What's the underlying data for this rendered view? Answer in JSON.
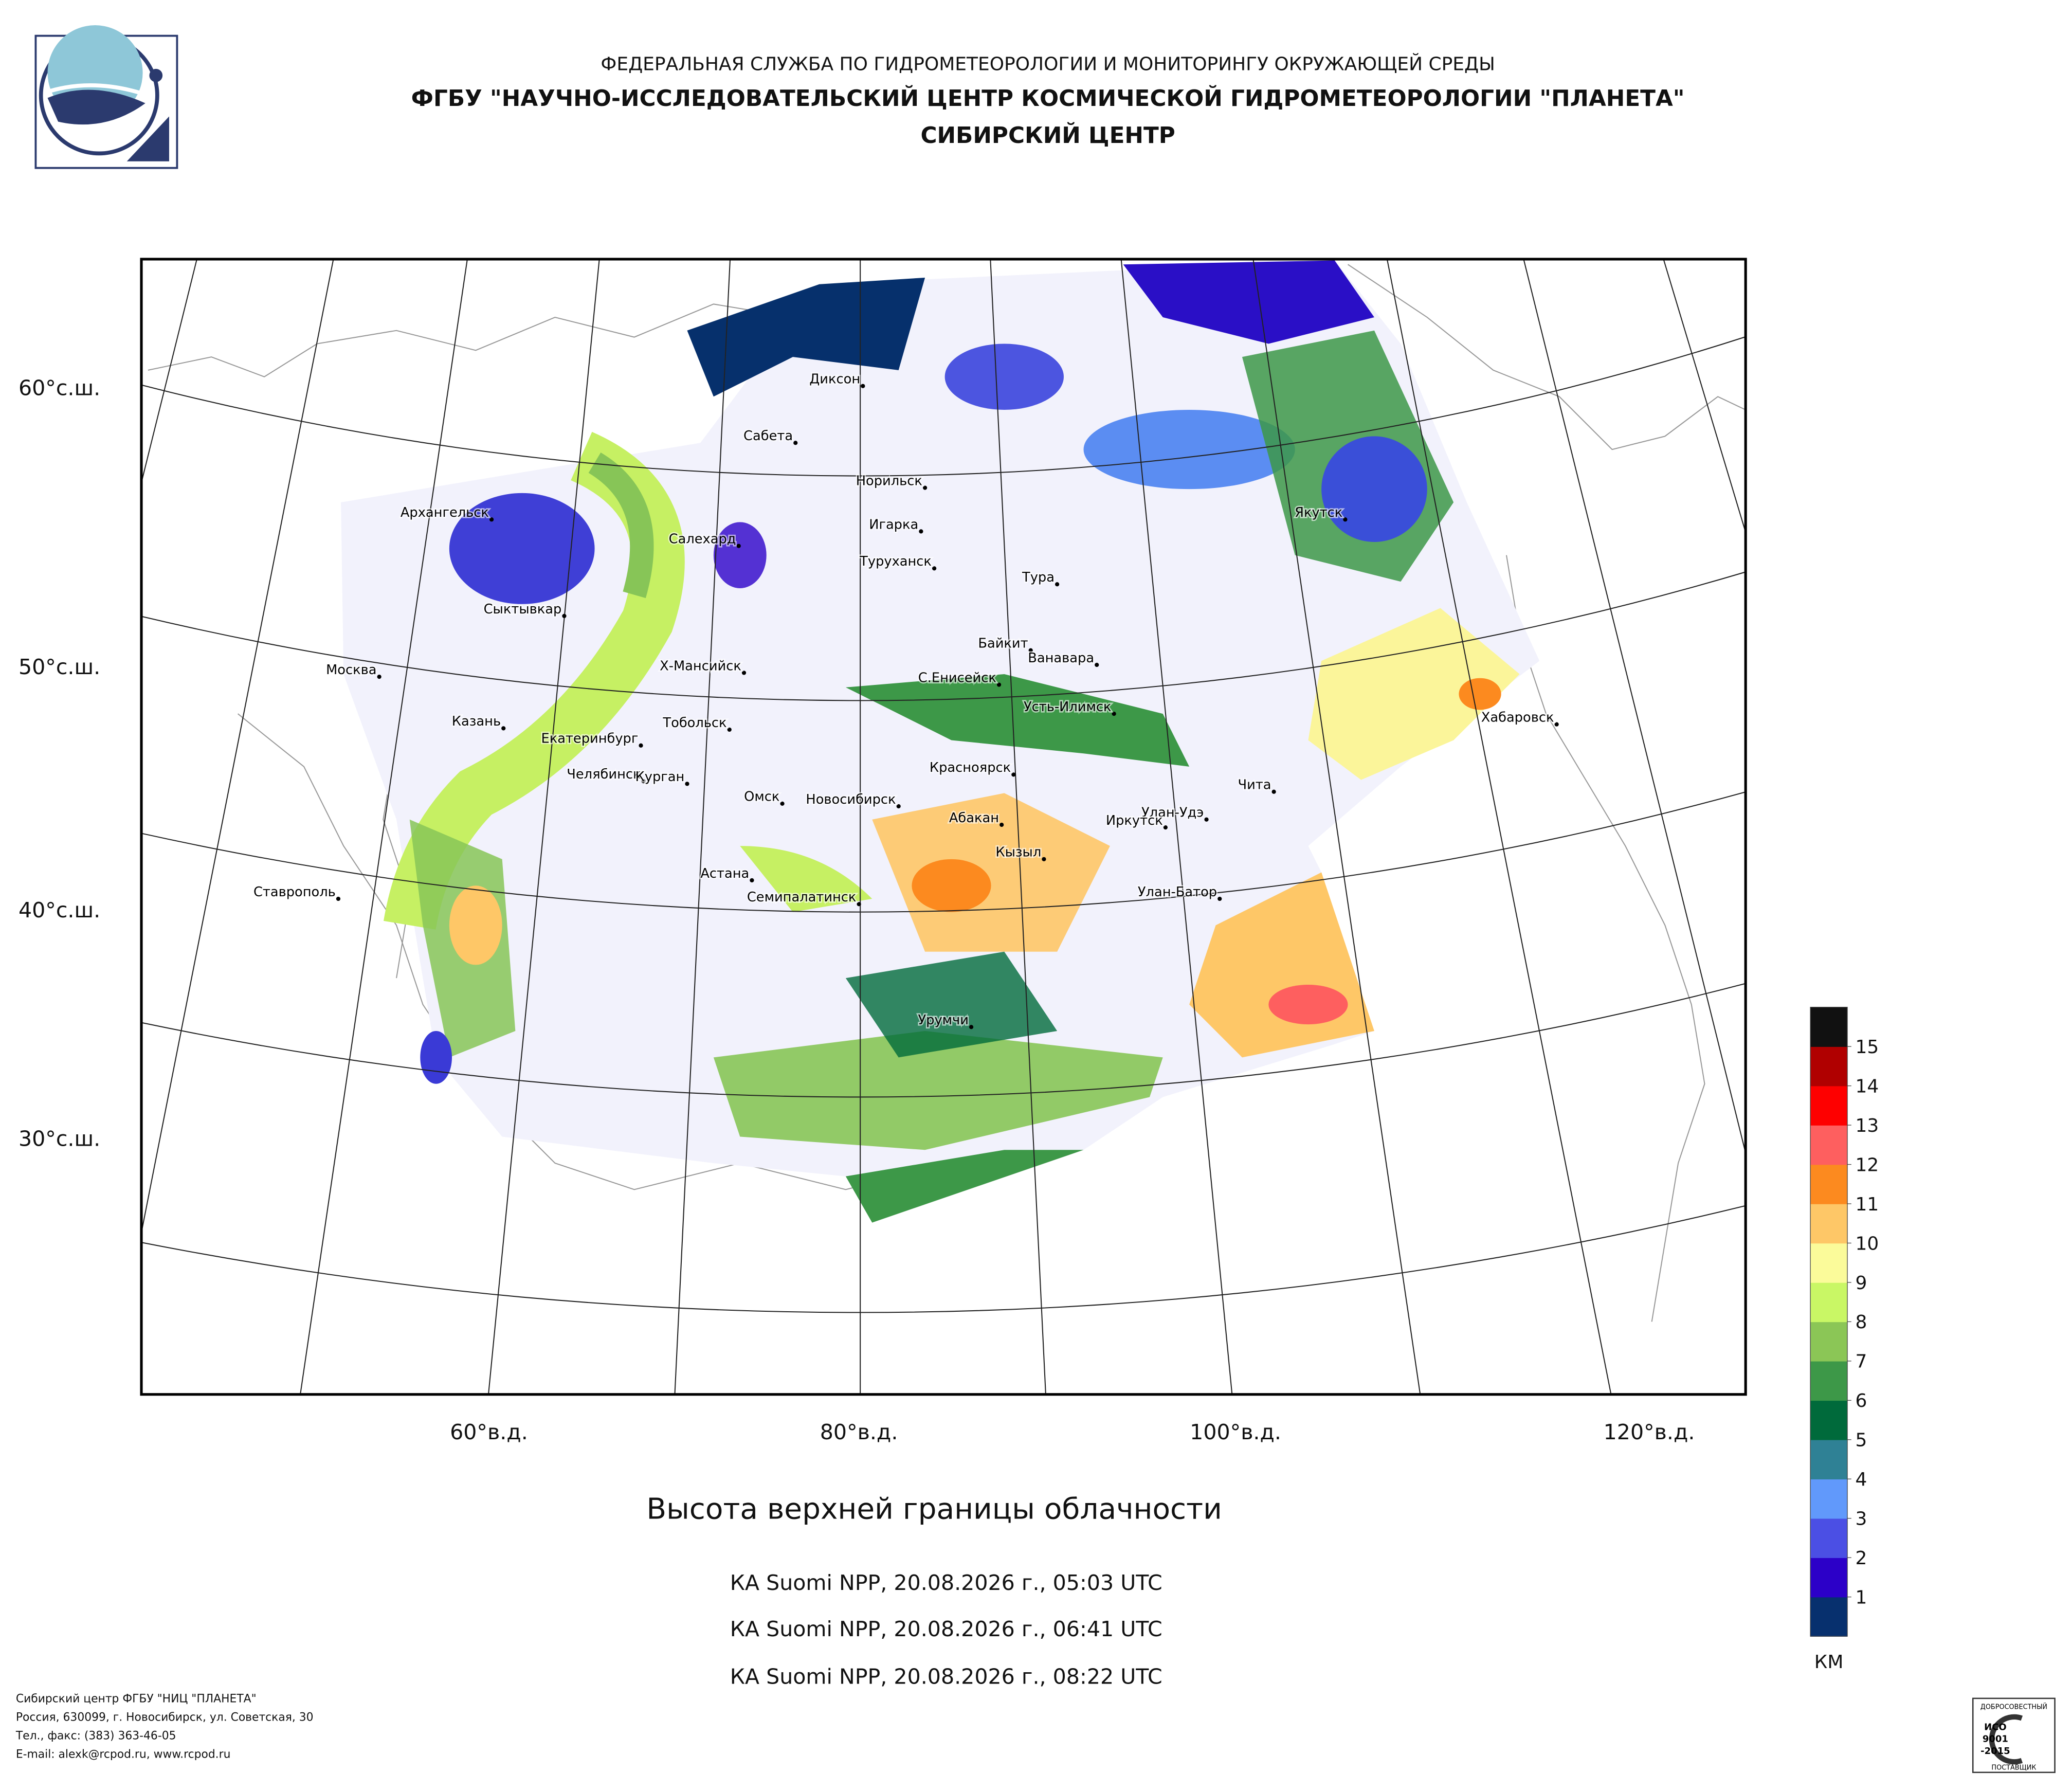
{
  "header": {
    "agency": "ФЕДЕРАЛЬНАЯ СЛУЖБА ПО ГИДРОМЕТЕОРОЛОГИИ И МОНИТОРИНГУ ОКРУЖАЮЩЕЙ СРЕДЫ",
    "institute": "ФГБУ \"НАУЧНО-ИССЛЕДОВАТЕЛЬСКИЙ ЦЕНТР КОСМИЧЕСКОЙ ГИДРОМЕТЕОРОЛОГИИ \"ПЛАНЕТА\"",
    "center": "СИБИРСКИЙ ЦЕНТР"
  },
  "map": {
    "latitude_labels": [
      "60°с.ш.",
      "50°с.ш.",
      "40°с.ш.",
      "30°с.ш."
    ],
    "longitude_labels": [
      "60°в.д.",
      "80°в.д.",
      "100°в.д.",
      "120°в.д."
    ],
    "cities": [
      "Диксон",
      "Сабета",
      "Норильск",
      "Архангельск",
      "Салехард",
      "Игарка",
      "Туруханск",
      "Тура",
      "Сыктывкар",
      "Якутск",
      "Байкит",
      "Ванавара",
      "Москва",
      "Х-Мансийск",
      "С.Енисейск",
      "Усть-Илимск",
      "Хабаровск",
      "Казань",
      "Тобольск",
      "Екатеринбург",
      "Красноярск",
      "Челябинск",
      "Курган",
      "Чита",
      "Омск",
      "Новосибирск",
      "Абакан",
      "Улан-Удэ",
      "Иркутск",
      "Кызыл",
      "Астана",
      "Ставрополь",
      "Семипалатинск",
      "Улан-Батор",
      "Урумчи"
    ]
  },
  "legend": {
    "colors": [
      "#07306e",
      "#2c00c8",
      "#4b4fe4",
      "#6199fb",
      "#2f8195",
      "#006a3b",
      "#3d9848",
      "#8bc656",
      "#c9f765",
      "#fbfb9a",
      "#fec767",
      "#fc8a1f",
      "#fe5f5f",
      "#fe0000",
      "#b00000",
      "#111111"
    ],
    "ticks": [
      1,
      2,
      3,
      4,
      5,
      6,
      7,
      8,
      9,
      10,
      11,
      12,
      13,
      14,
      15
    ],
    "unit": "КМ"
  },
  "caption": {
    "title": "Высота верхней границы облачности",
    "passes": [
      "КА Suomi NPP, 20.08.2026 г., 05:03 UTC",
      "КА Suomi NPP, 20.08.2026 г., 06:41 UTC",
      "КА Suomi NPP, 20.08.2026 г., 08:22 UTC"
    ]
  },
  "footer": {
    "lines": [
      "Сибирский центр ФГБУ \"НИЦ \"ПЛАНЕТА\"",
      "Россия, 630099, г. Новосибирск, ул. Советская, 30",
      "Тел., факс: (383) 363-46-05",
      "E-mail: alexk@rcpod.ru, www.rcpod.ru"
    ]
  },
  "certificate": {
    "top": "ДОБРОСОВЕСТНЫЙ",
    "standard": "ИСО",
    "number": "9001",
    "year": "-2015",
    "bottom": "ПОСТАВЩИК"
  }
}
